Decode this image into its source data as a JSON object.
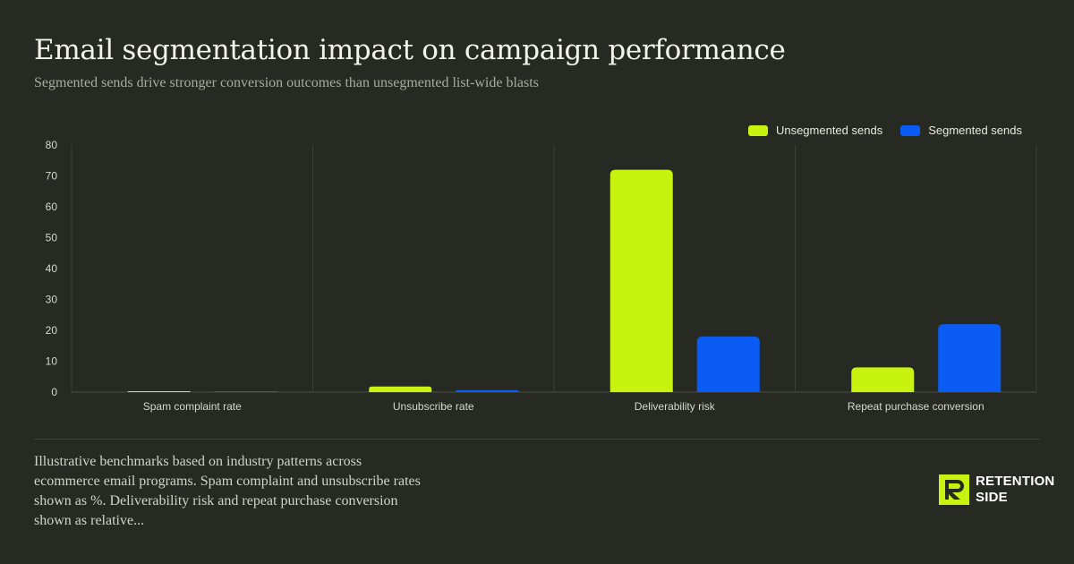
{
  "header": {
    "title": "Email segmentation impact on campaign performance",
    "subtitle": "Segmented sends drive stronger conversion outcomes than unsegmented list-wide blasts"
  },
  "colors": {
    "unsegmented": "#c8f20f",
    "segmented": "#0b5cf5",
    "background": "#272a22"
  },
  "chart_data": {
    "type": "bar",
    "categories": [
      "Spam complaint rate",
      "Unsubscribe rate",
      "Deliverability risk",
      "Repeat purchase conversion"
    ],
    "series": [
      {
        "name": "Unsegmented sends",
        "values": [
          0.3,
          1.8,
          72,
          8
        ]
      },
      {
        "name": "Segmented sends",
        "values": [
          0.1,
          0.6,
          18,
          22
        ]
      }
    ],
    "ylim": [
      0,
      80
    ],
    "yticks": [
      0,
      10,
      20,
      30,
      40,
      50,
      60,
      70,
      80
    ],
    "legend": "top-right",
    "grid": "vertical category separators"
  },
  "footer": {
    "note": "Illustrative benchmarks based on industry patterns across ecommerce email programs. Spam complaint and unsubscribe rates shown as %. Deliverability risk and repeat purchase conversion shown as relative...",
    "logo_line1": "RETENTION",
    "logo_line2": "SIDE"
  }
}
